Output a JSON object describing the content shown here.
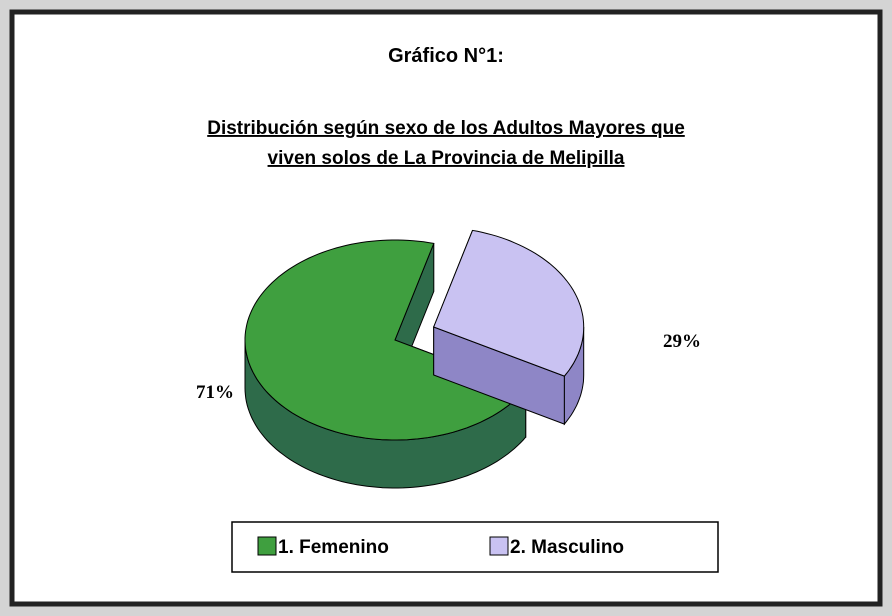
{
  "chart_data": {
    "type": "pie",
    "title": "Gráfico N°1:",
    "subtitle": [
      "Distribución según sexo de los Adultos Mayores que",
      "viven solos de La Provincia de Melipilla"
    ],
    "categories": [
      "1. Femenino",
      "2. Masculino"
    ],
    "values": [
      71,
      29
    ],
    "value_labels": [
      "71%",
      "29%"
    ],
    "colors": [
      "#3f9f3f",
      "#c9c2f2"
    ],
    "side_colors": [
      "#2e6b4a",
      "#8e86c6"
    ],
    "legend": "bottom"
  }
}
